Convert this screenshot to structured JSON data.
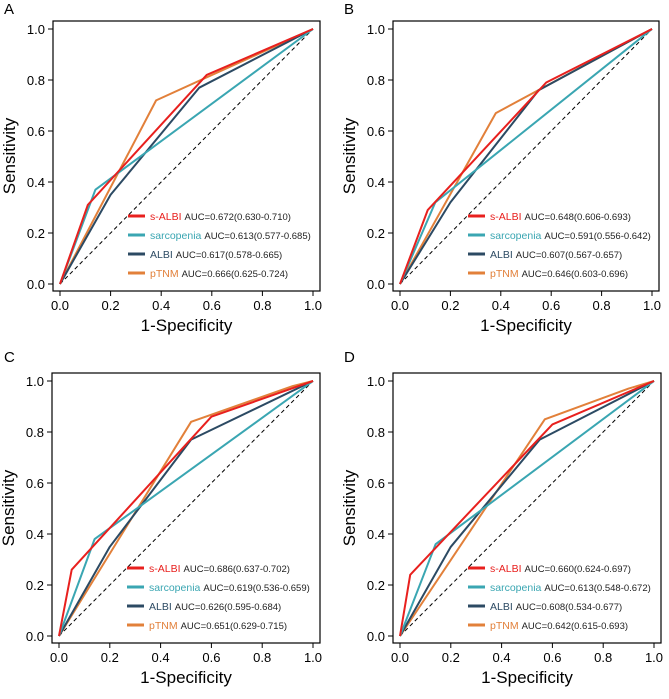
{
  "series_colors": {
    "s-ALBI": "#e8201e",
    "sarcopenia": "#3aa6b2",
    "ALBI": "#2c4a63",
    "pTNM": "#e2803a"
  },
  "chart_data": [
    {
      "type": "line",
      "panel": "A",
      "xlabel": "1-Specificity",
      "ylabel": "Sensitivity",
      "xlim": [
        0,
        1
      ],
      "ylim": [
        0,
        1
      ],
      "ticks": [
        "0.0",
        "0.2",
        "0.4",
        "0.6",
        "0.8",
        "1.0"
      ],
      "reference_line": [
        [
          0,
          0
        ],
        [
          1,
          1
        ]
      ],
      "series": [
        {
          "name": "s-ALBI",
          "auc": "AUC=0.672(0.630-0.710)",
          "points": [
            [
              0,
              0
            ],
            [
              0.11,
              0.31
            ],
            [
              0.58,
              0.82
            ],
            [
              1,
              1
            ]
          ]
        },
        {
          "name": "sarcopenia",
          "auc": "AUC=0.613(0.577-0.685)",
          "points": [
            [
              0,
              0
            ],
            [
              0.14,
              0.37
            ],
            [
              1,
              1
            ]
          ]
        },
        {
          "name": "ALBI",
          "auc": "AUC=0.617(0.578-0.665)",
          "points": [
            [
              0,
              0
            ],
            [
              0.2,
              0.35
            ],
            [
              0.55,
              0.77
            ],
            [
              1,
              1
            ]
          ]
        },
        {
          "name": "pTNM",
          "auc": "AUC=0.666(0.625-0.724)",
          "points": [
            [
              0,
              0
            ],
            [
              0.38,
              0.72
            ],
            [
              1,
              1
            ]
          ]
        }
      ]
    },
    {
      "type": "line",
      "panel": "B",
      "xlabel": "1-Specificity",
      "ylabel": "Sensitivity",
      "xlim": [
        0,
        1
      ],
      "ylim": [
        0,
        1
      ],
      "ticks": [
        "0.0",
        "0.2",
        "0.4",
        "0.6",
        "0.8",
        "1.0"
      ],
      "reference_line": [
        [
          0,
          0
        ],
        [
          1,
          1
        ]
      ],
      "series": [
        {
          "name": "s-ALBI",
          "auc": "AUC=0.648(0.606-0.693)",
          "points": [
            [
              0,
              0
            ],
            [
              0.11,
              0.29
            ],
            [
              0.58,
              0.79
            ],
            [
              1,
              1
            ]
          ]
        },
        {
          "name": "sarcopenia",
          "auc": "AUC=0.591(0.556-0.642)",
          "points": [
            [
              0,
              0
            ],
            [
              0.14,
              0.32
            ],
            [
              1,
              1
            ]
          ]
        },
        {
          "name": "ALBI",
          "auc": "AUC=0.607(0.567-0.657)",
          "points": [
            [
              0,
              0
            ],
            [
              0.2,
              0.32
            ],
            [
              0.55,
              0.76
            ],
            [
              1,
              1
            ]
          ]
        },
        {
          "name": "pTNM",
          "auc": "AUC=0.646(0.603-0.696)",
          "points": [
            [
              0,
              0
            ],
            [
              0.38,
              0.67
            ],
            [
              1,
              1
            ]
          ]
        }
      ]
    },
    {
      "type": "line",
      "panel": "C",
      "xlabel": "1-Specificity",
      "ylabel": "Sensitivity",
      "xlim": [
        0,
        1
      ],
      "ylim": [
        0,
        1
      ],
      "ticks": [
        "0.0",
        "0.2",
        "0.4",
        "0.6",
        "0.8",
        "1.0"
      ],
      "reference_line": [
        [
          0,
          0
        ],
        [
          1,
          1
        ]
      ],
      "series": [
        {
          "name": "s-ALBI",
          "auc": "AUC=0.686(0.637-0.702)",
          "points": [
            [
              0,
              0
            ],
            [
              0.05,
              0.26
            ],
            [
              0.6,
              0.86
            ],
            [
              1,
              1
            ]
          ]
        },
        {
          "name": "sarcopenia",
          "auc": "AUC=0.619(0.536-0.659)",
          "points": [
            [
              0,
              0
            ],
            [
              0.14,
              0.38
            ],
            [
              1,
              1
            ]
          ]
        },
        {
          "name": "ALBI",
          "auc": "AUC=0.626(0.595-0.684)",
          "points": [
            [
              0,
              0
            ],
            [
              0.2,
              0.35
            ],
            [
              0.52,
              0.77
            ],
            [
              1,
              1
            ]
          ]
        },
        {
          "name": "pTNM",
          "auc": "AUC=0.651(0.629-0.715)",
          "points": [
            [
              0,
              0
            ],
            [
              0.52,
              0.84
            ],
            [
              0.92,
              0.98
            ],
            [
              1,
              1
            ]
          ]
        }
      ]
    },
    {
      "type": "line",
      "panel": "D",
      "xlabel": "1-Specificity",
      "ylabel": "Sensitivity",
      "xlim": [
        0,
        1
      ],
      "ylim": [
        0,
        1
      ],
      "ticks": [
        "0.0",
        "0.2",
        "0.4",
        "0.6",
        "0.8",
        "1.0"
      ],
      "reference_line": [
        [
          0,
          0
        ],
        [
          1,
          1
        ]
      ],
      "series": [
        {
          "name": "s-ALBI",
          "auc": "AUC=0.660(0.624-0.697)",
          "points": [
            [
              0,
              0
            ],
            [
              0.04,
              0.24
            ],
            [
              0.6,
              0.83
            ],
            [
              1,
              1
            ]
          ]
        },
        {
          "name": "sarcopenia",
          "auc": "AUC=0.613(0.548-0.672)",
          "points": [
            [
              0,
              0
            ],
            [
              0.14,
              0.36
            ],
            [
              1,
              1
            ]
          ]
        },
        {
          "name": "ALBI",
          "auc": "AUC=0.608(0.534-0.677)",
          "points": [
            [
              0,
              0
            ],
            [
              0.2,
              0.35
            ],
            [
              0.55,
              0.77
            ],
            [
              1,
              1
            ]
          ]
        },
        {
          "name": "pTNM",
          "auc": "AUC=0.642(0.615-0.693)",
          "points": [
            [
              0,
              0
            ],
            [
              0.57,
              0.85
            ],
            [
              0.9,
              0.97
            ],
            [
              1,
              1
            ]
          ]
        }
      ]
    }
  ]
}
